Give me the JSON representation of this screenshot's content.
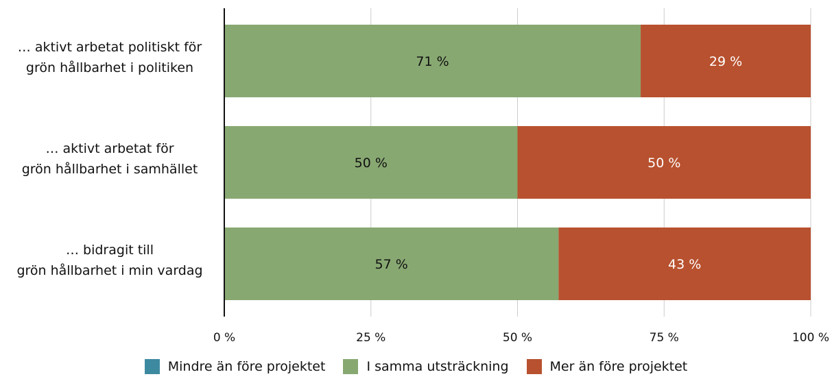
{
  "chart_data": {
    "type": "bar",
    "orientation": "horizontal",
    "stacked": true,
    "categories": [
      [
        "… aktivt arbetat politiskt för",
        "grön hållbarhet i politiken"
      ],
      [
        "… aktivt arbetat för",
        "grön hållbarhet i samhället"
      ],
      [
        "… bidragit till",
        "grön hållbarhet i min vardag"
      ]
    ],
    "series": [
      {
        "name": "Mindre än före projektet",
        "color": "#3d8aa0",
        "values": [
          0,
          0,
          0
        ],
        "label_color": "#ffffff"
      },
      {
        "name": "I samma utsträckning",
        "color": "#88a872",
        "values": [
          71,
          50,
          57
        ],
        "label_color": "#111111"
      },
      {
        "name": "Mer än före projektet",
        "color": "#b8512f",
        "values": [
          29,
          50,
          43
        ],
        "label_color": "#ffffff"
      }
    ],
    "value_suffix": " %",
    "xlim": [
      0,
      100
    ],
    "xticks": [
      0,
      25,
      50,
      75,
      100
    ],
    "xtick_labels": [
      "0 %",
      "25 %",
      "50 %",
      "75 %",
      "100 %"
    ],
    "grid": true,
    "legend_position": "bottom",
    "title": "",
    "xlabel": "",
    "ylabel": ""
  }
}
